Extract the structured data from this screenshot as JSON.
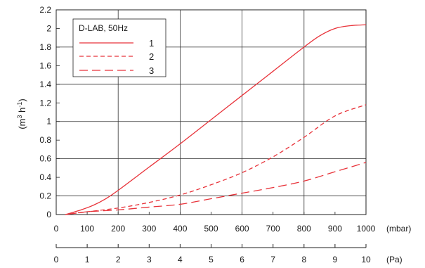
{
  "chart_data": {
    "type": "line",
    "title": "",
    "xlabel": "(mbar)",
    "x2label": "(Pa)",
    "ylabel_parts": [
      "(m",
      "3",
      " h",
      "-1",
      ")"
    ],
    "xlim": [
      0,
      1000
    ],
    "ylim": [
      0,
      2.2
    ],
    "x_ticks": [
      0,
      100,
      200,
      300,
      400,
      500,
      600,
      700,
      800,
      900,
      1000
    ],
    "x_tick_labels": [
      "0",
      "100",
      "200",
      "300",
      "400",
      "500",
      "600",
      "700",
      "800",
      "900",
      "1000"
    ],
    "x2_ticks": [
      0,
      1,
      2,
      3,
      4,
      5,
      6,
      7,
      8,
      9,
      10
    ],
    "x2_tick_labels": [
      "0",
      "1",
      "2",
      "3",
      "4",
      "5",
      "6",
      "7",
      "8",
      "9",
      "10"
    ],
    "y_ticks": [
      0,
      0.2,
      0.4,
      0.6,
      0.8,
      1,
      1.2,
      1.4,
      1.6,
      1.8,
      2,
      2.2
    ],
    "y_tick_labels": [
      "0",
      "0.2",
      "0.4",
      "0.6",
      "0.8",
      "1",
      "1.2",
      "1.4",
      "1.6",
      "1.8",
      "2",
      "2.2"
    ],
    "grid": "major lines at x = 200, 400, 600, 800 and y = 0.2, 0.6, 1.0, 1.4, 1.8",
    "legend": {
      "title": "D-LAB, 50Hz",
      "placement": "top-left"
    },
    "series": [
      {
        "name": "1",
        "style": "solid",
        "color": "#e8333a",
        "x": [
          30,
          80,
          120,
          160,
          200,
          300,
          400,
          500,
          600,
          700,
          800,
          850,
          900,
          950,
          1000
        ],
        "y": [
          0.0,
          0.05,
          0.1,
          0.17,
          0.26,
          0.51,
          0.76,
          1.02,
          1.28,
          1.54,
          1.8,
          1.92,
          2.0,
          2.03,
          2.04
        ]
      },
      {
        "name": "2",
        "style": "dashed",
        "color": "#e8333a",
        "x": [
          30,
          100,
          200,
          300,
          400,
          500,
          600,
          700,
          800,
          900,
          1000
        ],
        "y": [
          0.0,
          0.03,
          0.07,
          0.13,
          0.21,
          0.32,
          0.45,
          0.62,
          0.83,
          1.06,
          1.18
        ]
      },
      {
        "name": "3",
        "style": "long-dashed",
        "color": "#e8333a",
        "x": [
          30,
          100,
          200,
          300,
          400,
          500,
          600,
          700,
          800,
          900,
          1000
        ],
        "y": [
          0.0,
          0.03,
          0.05,
          0.08,
          0.11,
          0.17,
          0.23,
          0.29,
          0.36,
          0.46,
          0.56
        ]
      }
    ]
  }
}
